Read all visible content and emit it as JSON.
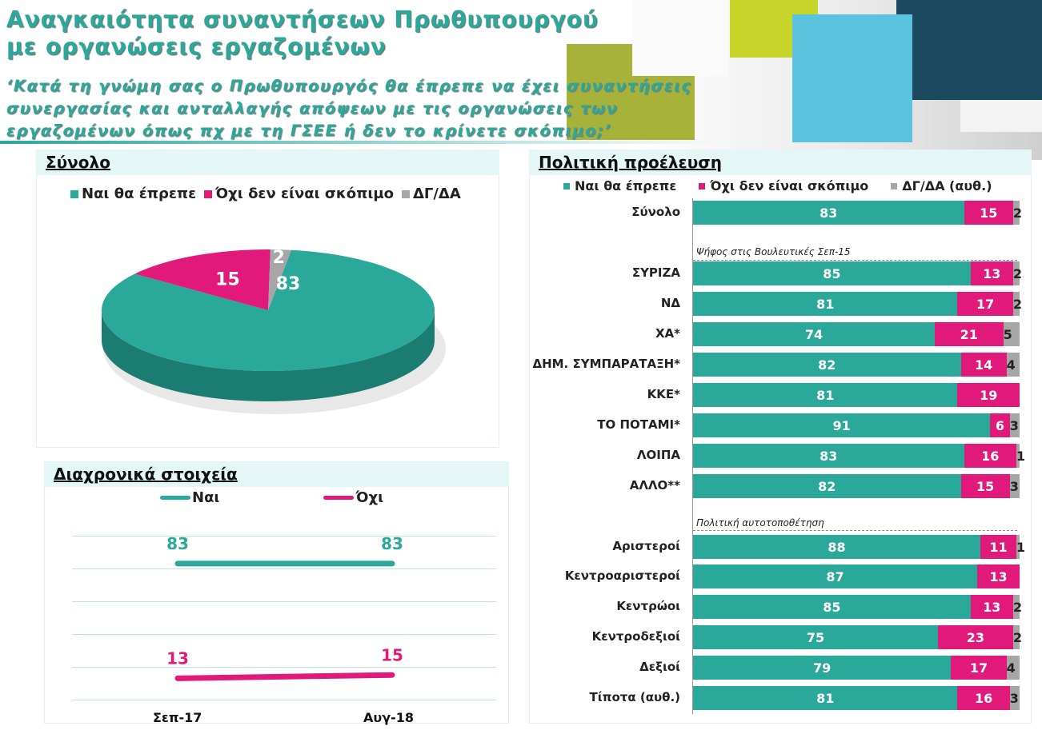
{
  "title_lines": [
    "Αναγκαιότητα συναντήσεων Πρωθυπουργού",
    "με οργανώσεις εργαζομένων"
  ],
  "subtitle_lines": [
    "‘Κατά τη γνώμη σας ο Πρωθυπουργός θα έπρεπε να έχει συναντήσεις",
    "συνεργασίας και ανταλλαγής απόψεων με τις οργανώσεις των",
    "εργαζομένων όπως πχ με τη ΓΣΕΕ ή δεν το κρίνετε σκόπιμο;’"
  ],
  "colors": {
    "teal": "#2aa89a",
    "pink": "#e0197a",
    "gray": "#a6a6a6",
    "header_bg": "#e4f6f5"
  },
  "chart_data": [
    {
      "type": "pie",
      "header": "Σύνολο",
      "legend": [
        "Ναι θα έπρεπε",
        "Όχι δεν είναι σκόπιμο",
        "ΔΓ/ΔΑ"
      ],
      "labels": [
        "Ναι θα έπρεπε",
        "Όχι δεν είναι σκόπιμο",
        "ΔΓ/ΔΑ"
      ],
      "values": [
        83,
        15,
        2
      ]
    },
    {
      "type": "line",
      "header": "Διαχρονικά στοιχεία",
      "categories": [
        "Σεπ-17",
        "Αυγ-18"
      ],
      "series": [
        {
          "name": "Ναι",
          "values": [
            83,
            83
          ]
        },
        {
          "name": "Όχι",
          "values": [
            13,
            15
          ]
        }
      ]
    },
    {
      "type": "bar",
      "orientation": "horizontal",
      "stacked": true,
      "header": "Πολιτική προέλευση",
      "legend": [
        "Ναι θα έπρεπε",
        "Όχι δεν είναι σκόπιμο",
        "ΔΓ/ΔΑ (αυθ.)"
      ],
      "group_labels": [
        "Ψήφος στις Βουλευτικές Σεπ-15",
        "Πολιτική αυτοτοποθέτηση"
      ],
      "rows": [
        {
          "label": "Σύνολο",
          "values": [
            83,
            15,
            2
          ]
        },
        {
          "label": "ΣΥΡΙΖΑ",
          "values": [
            85,
            13,
            2
          ]
        },
        {
          "label": "ΝΔ",
          "values": [
            81,
            17,
            2
          ]
        },
        {
          "label": "ΧΑ*",
          "values": [
            74,
            21,
            5
          ]
        },
        {
          "label": "ΔΗΜ. ΣΥΜΠΑΡΑΤΑΞΗ*",
          "values": [
            82,
            14,
            4
          ]
        },
        {
          "label": "ΚΚΕ*",
          "values": [
            81,
            19,
            null
          ]
        },
        {
          "label": "ΤΟ ΠΟΤΑΜΙ*",
          "values": [
            91,
            6,
            3
          ]
        },
        {
          "label": "ΛΟΙΠΑ",
          "values": [
            83,
            16,
            1
          ]
        },
        {
          "label": "ΑΛΛΟ**",
          "values": [
            82,
            15,
            3
          ]
        },
        {
          "label": "Αριστεροί",
          "values": [
            88,
            11,
            1
          ]
        },
        {
          "label": "Κεντροαριστεροί",
          "values": [
            87,
            13,
            null
          ]
        },
        {
          "label": "Κεντρώοι",
          "values": [
            85,
            13,
            2
          ]
        },
        {
          "label": "Κεντροδεξιοί",
          "values": [
            75,
            23,
            2
          ]
        },
        {
          "label": "Δεξιοί",
          "values": [
            79,
            17,
            4
          ]
        },
        {
          "label": "Τίποτα (αυθ.)",
          "values": [
            81,
            16,
            3
          ]
        }
      ]
    }
  ]
}
